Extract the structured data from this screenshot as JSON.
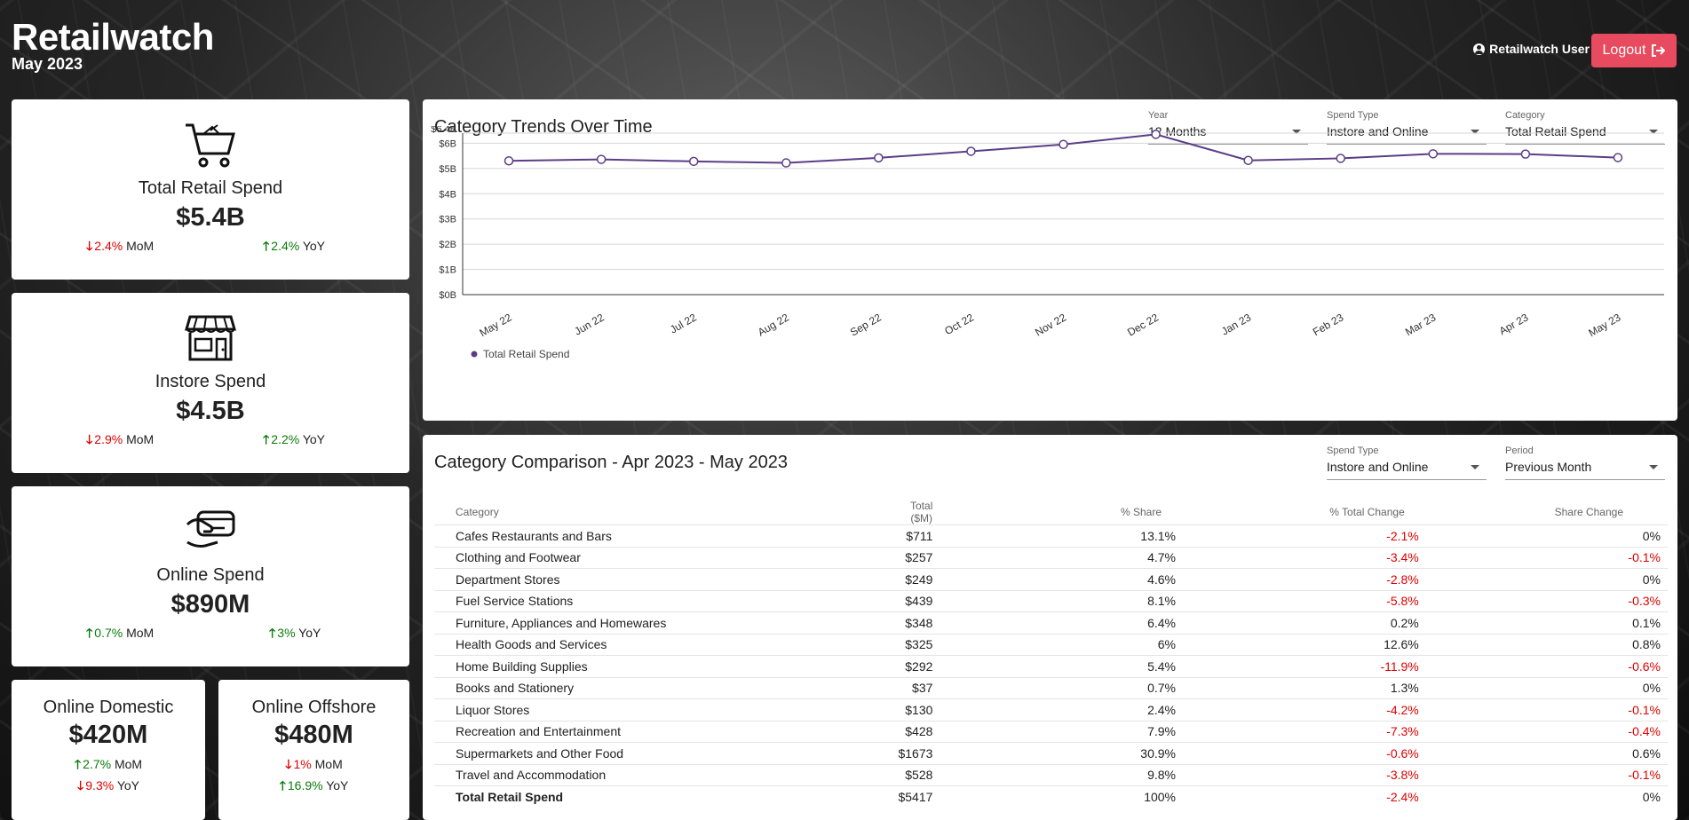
{
  "header": {
    "title": "Retailwatch",
    "subtitle": "May 2023",
    "user_label": "Retailwatch User",
    "logout_label": "Logout"
  },
  "kpis": [
    {
      "label": "Total Retail Spend",
      "value": "$5.4B",
      "mom": "2.4%",
      "mom_dir": "down",
      "mom_label": "MoM",
      "yoy": "2.4%",
      "yoy_dir": "up",
      "yoy_label": "YoY",
      "icon": "shopping-cart-icon"
    },
    {
      "label": "Instore Spend",
      "value": "$4.5B",
      "mom": "2.9%",
      "mom_dir": "down",
      "mom_label": "MoM",
      "yoy": "2.2%",
      "yoy_dir": "up",
      "yoy_label": "YoY",
      "icon": "storefront-icon"
    },
    {
      "label": "Online Spend",
      "value": "$890M",
      "mom": "0.7%",
      "mom_dir": "up",
      "mom_label": "MoM",
      "yoy": "3%",
      "yoy_dir": "up",
      "yoy_label": "YoY",
      "icon": "credit-card-hand-icon"
    },
    {
      "label": "Online Domestic",
      "value": "$420M",
      "mom": "2.7%",
      "mom_dir": "up",
      "mom_label": "MoM",
      "yoy": "9.3%",
      "yoy_dir": "down",
      "yoy_label": "YoY"
    },
    {
      "label": "Online Offshore",
      "value": "$480M",
      "mom": "1%",
      "mom_dir": "down",
      "mom_label": "MoM",
      "yoy": "16.9%",
      "yoy_dir": "up",
      "yoy_label": "YoY"
    }
  ],
  "trends": {
    "title": "Category Trends Over Time",
    "filters": [
      {
        "label": "Year",
        "value": "12 Months"
      },
      {
        "label": "Spend Type",
        "value": "Instore and Online"
      },
      {
        "label": "Category",
        "value": "Total Retail Spend"
      }
    ]
  },
  "chart_data": {
    "type": "line",
    "x": [
      "May 22",
      "Jun 22",
      "Jul 22",
      "Aug 22",
      "Sep 22",
      "Oct 22",
      "Nov 22",
      "Dec 22",
      "Jan 23",
      "Feb 23",
      "Mar 23",
      "Apr 23",
      "May 23"
    ],
    "series": [
      {
        "name": "Total Retail Spend",
        "values": [
          5.3,
          5.36,
          5.28,
          5.22,
          5.42,
          5.68,
          5.95,
          6.35,
          5.32,
          5.4,
          5.58,
          5.57,
          5.43
        ]
      }
    ],
    "y_ticks": [
      "$0B",
      "$1B",
      "$2B",
      "$3B",
      "$4B",
      "$5B",
      "$6B",
      "$6.4B"
    ],
    "y_tick_values": [
      0,
      1,
      2,
      3,
      4,
      5,
      6,
      6.4
    ],
    "ylim": [
      0,
      6.4
    ],
    "legend": "bottom-left",
    "grid": true,
    "color": "#5b3d87"
  },
  "comparison": {
    "title": "Category Comparison - Apr 2023 - May 2023",
    "filters": [
      {
        "label": "Spend Type",
        "value": "Instore and Online"
      },
      {
        "label": "Period",
        "value": "Previous Month"
      }
    ],
    "columns": [
      "Category",
      "Total ($M)",
      "% Share",
      "% Total Change",
      "Share Change"
    ],
    "rows": [
      [
        "Cafes Restaurants and Bars",
        "$711",
        "13.1%",
        "-2.1%",
        "0%"
      ],
      [
        "Clothing and Footwear",
        "$257",
        "4.7%",
        "-3.4%",
        "-0.1%"
      ],
      [
        "Department Stores",
        "$249",
        "4.6%",
        "-2.8%",
        "0%"
      ],
      [
        "Fuel Service Stations",
        "$439",
        "8.1%",
        "-5.8%",
        "-0.3%"
      ],
      [
        "Furniture, Appliances and Homewares",
        "$348",
        "6.4%",
        "0.2%",
        "0.1%"
      ],
      [
        "Health Goods and Services",
        "$325",
        "6%",
        "12.6%",
        "0.8%"
      ],
      [
        "Home Building Supplies",
        "$292",
        "5.4%",
        "-11.9%",
        "-0.6%"
      ],
      [
        "Books and Stationery",
        "$37",
        "0.7%",
        "1.3%",
        "0%"
      ],
      [
        "Liquor Stores",
        "$130",
        "2.4%",
        "-4.2%",
        "-0.1%"
      ],
      [
        "Recreation and Entertainment",
        "$428",
        "7.9%",
        "-7.3%",
        "-0.4%"
      ],
      [
        "Supermarkets and Other Food",
        "$1673",
        "30.9%",
        "-0.6%",
        "0.6%"
      ],
      [
        "Travel and Accommodation",
        "$528",
        "9.8%",
        "-3.8%",
        "-0.1%"
      ],
      [
        "Total Retail Spend",
        "$5417",
        "100%",
        "-2.4%",
        "0%"
      ]
    ]
  }
}
